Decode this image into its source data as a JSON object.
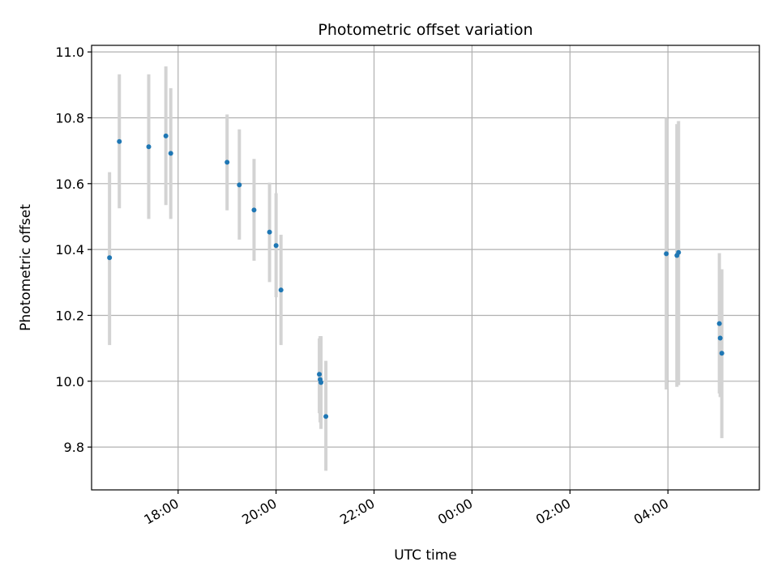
{
  "chart_data": {
    "type": "scatter",
    "title": "Photometric offset variation",
    "xlabel": "UTC time",
    "ylabel": "Photometric offset",
    "grid": true,
    "colors": {
      "point": "#1f77b4",
      "errorbar": "#d3d3d3",
      "grid": "#b0b0b0",
      "axes": "#000000"
    },
    "xlim": [
      "16:14",
      "05:52"
    ],
    "ylim": [
      9.67,
      11.02
    ],
    "x_ticks": [
      "18:00",
      "20:00",
      "22:00",
      "00:00",
      "02:00",
      "04:00"
    ],
    "y_ticks": [
      "9.8",
      "10.0",
      "10.2",
      "10.4",
      "10.6",
      "10.8",
      "11.0"
    ],
    "points": [
      {
        "x": "16:36",
        "y": 10.375,
        "yerr_low": 10.11,
        "yerr_high": 10.635
      },
      {
        "x": "16:48",
        "y": 10.728,
        "yerr_low": 10.525,
        "yerr_high": 10.932
      },
      {
        "x": "17:24",
        "y": 10.712,
        "yerr_low": 10.493,
        "yerr_high": 10.932
      },
      {
        "x": "17:45",
        "y": 10.745,
        "yerr_low": 10.535,
        "yerr_high": 10.956
      },
      {
        "x": "17:51",
        "y": 10.692,
        "yerr_low": 10.493,
        "yerr_high": 10.89
      },
      {
        "x": "19:00",
        "y": 10.665,
        "yerr_low": 10.519,
        "yerr_high": 10.81
      },
      {
        "x": "19:15",
        "y": 10.596,
        "yerr_low": 10.43,
        "yerr_high": 10.765
      },
      {
        "x": "19:33",
        "y": 10.52,
        "yerr_low": 10.366,
        "yerr_high": 10.675
      },
      {
        "x": "19:52",
        "y": 10.453,
        "yerr_low": 10.301,
        "yerr_high": 10.603
      },
      {
        "x": "20:00",
        "y": 10.412,
        "yerr_low": 10.255,
        "yerr_high": 10.571
      },
      {
        "x": "20:06",
        "y": 10.277,
        "yerr_low": 10.11,
        "yerr_high": 10.445
      },
      {
        "x": "20:53",
        "y": 10.021,
        "yerr_low": 9.903,
        "yerr_high": 10.13
      },
      {
        "x": "20:54",
        "y": 10.005,
        "yerr_low": 9.875,
        "yerr_high": 10.137
      },
      {
        "x": "20:55",
        "y": 9.996,
        "yerr_low": 9.855,
        "yerr_high": 10.137
      },
      {
        "x": "21:01",
        "y": 9.893,
        "yerr_low": 9.728,
        "yerr_high": 10.062
      },
      {
        "x": "03:58",
        "y": 10.387,
        "yerr_low": 9.975,
        "yerr_high": 10.8
      },
      {
        "x": "04:11",
        "y": 10.382,
        "yerr_low": 9.983,
        "yerr_high": 10.781
      },
      {
        "x": "04:13",
        "y": 10.391,
        "yerr_low": 9.988,
        "yerr_high": 10.79
      },
      {
        "x": "05:03",
        "y": 10.175,
        "yerr_low": 9.963,
        "yerr_high": 10.389
      },
      {
        "x": "05:04",
        "y": 10.131,
        "yerr_low": 9.952,
        "yerr_high": 10.34
      },
      {
        "x": "05:06",
        "y": 10.085,
        "yerr_low": 9.827,
        "yerr_high": 10.34
      }
    ]
  }
}
